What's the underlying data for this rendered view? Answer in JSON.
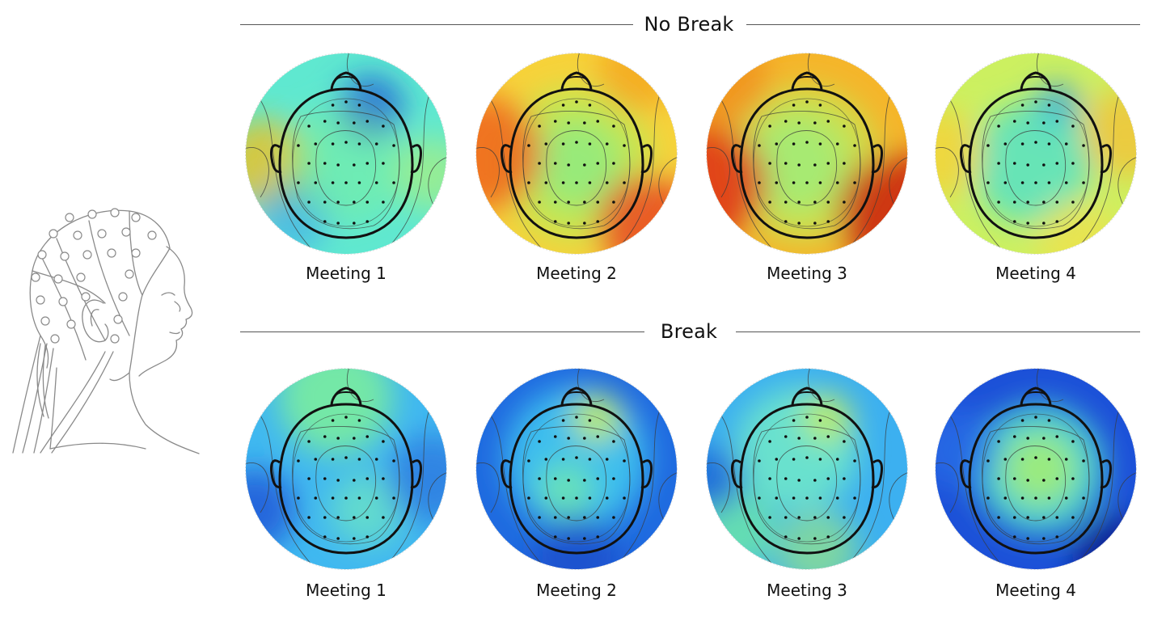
{
  "sections": [
    {
      "title": "No Break",
      "maps": [
        {
          "label": "Meeting 1",
          "palette": "nb1"
        },
        {
          "label": "Meeting 2",
          "palette": "nb2"
        },
        {
          "label": "Meeting 3",
          "palette": "nb3"
        },
        {
          "label": "Meeting 4",
          "palette": "nb4"
        }
      ]
    },
    {
      "title": "Break",
      "maps": [
        {
          "label": "Meeting 1",
          "palette": "b1"
        },
        {
          "label": "Meeting 2",
          "palette": "b2"
        },
        {
          "label": "Meeting 3",
          "palette": "b3"
        },
        {
          "label": "Meeting 4",
          "palette": "b4"
        }
      ]
    }
  ],
  "colors": {
    "line": "#555555",
    "head_outline": "#111111",
    "electrode": "#111111",
    "contour": "#3a3a3a",
    "illustration_line": "#8a8a8a"
  }
}
